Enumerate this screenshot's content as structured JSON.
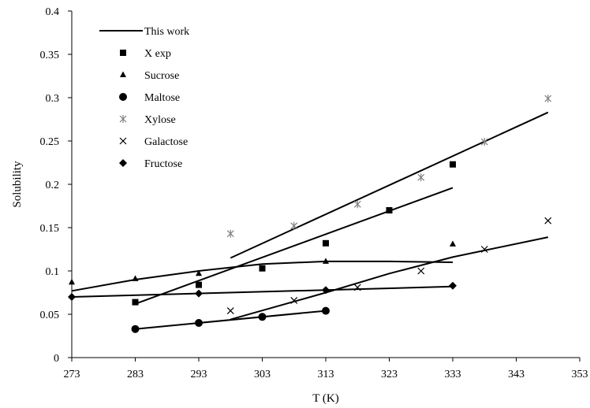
{
  "chart_data": {
    "type": "scatter",
    "xlabel": "T (K)",
    "ylabel": "Solubility",
    "xlim": [
      273,
      353
    ],
    "ylim": [
      0,
      0.4
    ],
    "xticks": [
      "273",
      "283",
      "293",
      "303",
      "313",
      "323",
      "333",
      "343",
      "353"
    ],
    "yticks": [
      "0",
      "0.05",
      "0.1",
      "0.15",
      "0.2",
      "0.25",
      "0.3",
      "0.35",
      "0.4"
    ],
    "grid": false,
    "legend_position": "top-left",
    "series": [
      {
        "name": "X exp",
        "marker": "square",
        "points": [
          [
            283,
            0.064
          ],
          [
            293,
            0.084
          ],
          [
            303,
            0.103
          ],
          [
            313,
            0.132
          ],
          [
            323,
            0.17
          ],
          [
            333,
            0.223
          ]
        ],
        "fit": [
          [
            283,
            0.062
          ],
          [
            333,
            0.196
          ]
        ]
      },
      {
        "name": "Sucrose",
        "marker": "triangle",
        "points": [
          [
            273,
            0.087
          ],
          [
            283,
            0.091
          ],
          [
            293,
            0.097
          ],
          [
            313,
            0.111
          ],
          [
            333,
            0.131
          ]
        ],
        "fit": [
          [
            273,
            0.077
          ],
          [
            283,
            0.09
          ],
          [
            293,
            0.1
          ],
          [
            303,
            0.108
          ],
          [
            313,
            0.111
          ],
          [
            323,
            0.111
          ],
          [
            333,
            0.11
          ]
        ]
      },
      {
        "name": "Maltose",
        "marker": "circle",
        "points": [
          [
            283,
            0.033
          ],
          [
            293,
            0.04
          ],
          [
            303,
            0.047
          ],
          [
            313,
            0.054
          ]
        ],
        "fit": [
          [
            283,
            0.033
          ],
          [
            313,
            0.054
          ]
        ]
      },
      {
        "name": "Xylose",
        "marker": "star",
        "points": [
          [
            298,
            0.143
          ],
          [
            308,
            0.152
          ],
          [
            318,
            0.177
          ],
          [
            328,
            0.208
          ],
          [
            338,
            0.249
          ],
          [
            348,
            0.299
          ]
        ],
        "fit": [
          [
            298,
            0.115
          ],
          [
            348,
            0.283
          ]
        ]
      },
      {
        "name": "Galactose",
        "marker": "x",
        "points": [
          [
            298,
            0.054
          ],
          [
            308,
            0.066
          ],
          [
            318,
            0.081
          ],
          [
            328,
            0.1
          ],
          [
            338,
            0.125
          ],
          [
            348,
            0.158
          ]
        ],
        "fit": [
          [
            298,
            0.044
          ],
          [
            313,
            0.075
          ],
          [
            323,
            0.097
          ],
          [
            333,
            0.116
          ],
          [
            348,
            0.139
          ]
        ]
      },
      {
        "name": "Fructose",
        "marker": "diamond",
        "points": [
          [
            273,
            0.07
          ],
          [
            293,
            0.074
          ],
          [
            313,
            0.078
          ],
          [
            333,
            0.083
          ]
        ],
        "fit": [
          [
            273,
            0.07
          ],
          [
            333,
            0.082
          ]
        ]
      }
    ],
    "legend": [
      {
        "label": "This work",
        "symbol": "line"
      },
      {
        "label": "X exp",
        "symbol": "square"
      },
      {
        "label": "Sucrose",
        "symbol": "triangle"
      },
      {
        "label": "Maltose",
        "symbol": "circle"
      },
      {
        "label": "Xylose",
        "symbol": "star"
      },
      {
        "label": "Galactose",
        "symbol": "x"
      },
      {
        "label": "Fructose",
        "symbol": "diamond"
      }
    ],
    "colors": {
      "marker": "#000000",
      "xylose_marker": "#808080",
      "fit_line": "#000000"
    }
  }
}
